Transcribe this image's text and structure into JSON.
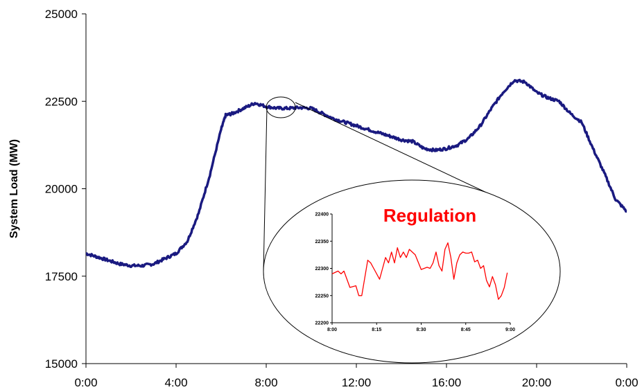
{
  "chart_data": [
    {
      "type": "line",
      "title": "",
      "xlabel": "",
      "ylabel": "System Load (MW)",
      "xlim": [
        0,
        24
      ],
      "ylim": [
        15000,
        25000
      ],
      "x_ticks": [
        "0:00",
        "4:00",
        "8:00",
        "12:00",
        "16:00",
        "20:00",
        "0:00"
      ],
      "y_ticks": [
        "15000",
        "17500",
        "20000",
        "22500",
        "25000"
      ],
      "series_color": "#1a1a80",
      "x": [
        0,
        0.5,
        1,
        1.5,
        2,
        2.5,
        3,
        3.5,
        4,
        4.5,
        5,
        5.5,
        6,
        6.2,
        6.5,
        7,
        7.5,
        8,
        8.5,
        9,
        9.5,
        10,
        10.5,
        11,
        11.5,
        12,
        12.5,
        13,
        13.5,
        14,
        14.5,
        15,
        15.5,
        16,
        16.5,
        17,
        17.5,
        18,
        18.5,
        19,
        19.5,
        20,
        20.5,
        21,
        21.5,
        22,
        22.5,
        23,
        23.5,
        24
      ],
      "values": [
        18150,
        18050,
        17950,
        17850,
        17800,
        17800,
        17850,
        18000,
        18150,
        18500,
        19300,
        20400,
        21700,
        22100,
        22150,
        22300,
        22450,
        22350,
        22300,
        22300,
        22320,
        22300,
        22150,
        22000,
        21900,
        21800,
        21700,
        21600,
        21500,
        21400,
        21350,
        21150,
        21100,
        21150,
        21250,
        21450,
        21800,
        22300,
        22750,
        23100,
        23050,
        22750,
        22600,
        22500,
        22150,
        21900,
        21150,
        20450,
        19700,
        19350
      ]
    },
    {
      "type": "line",
      "title": "Regulation",
      "xlabel": "",
      "ylabel": "",
      "xlim": [
        0,
        60
      ],
      "ylim": [
        22200,
        22400
      ],
      "x_ticks": [
        "8:00",
        "8:15",
        "8:30",
        "8:45",
        "9:00"
      ],
      "y_ticks": [
        "22200",
        "22250",
        "22300",
        "22350",
        "22400"
      ],
      "series_color": "#ff0000",
      "x": [
        0,
        2,
        3,
        4,
        6,
        8,
        9,
        10,
        12,
        13,
        14,
        16,
        17,
        18,
        19,
        20,
        21,
        22,
        23,
        24,
        25,
        26,
        28,
        30,
        31,
        32,
        33,
        34,
        35,
        36,
        37,
        38,
        39,
        40,
        41,
        42,
        43,
        44,
        45,
        46,
        47,
        48,
        49,
        50,
        51,
        52,
        53,
        54,
        55,
        56,
        57,
        58,
        59
      ],
      "values": [
        22290,
        22295,
        22290,
        22295,
        22265,
        22268,
        22250,
        22250,
        22315,
        22310,
        22300,
        22280,
        22300,
        22320,
        22310,
        22330,
        22310,
        22338,
        22320,
        22330,
        22320,
        22335,
        22325,
        22298,
        22300,
        22302,
        22300,
        22310,
        22330,
        22305,
        22295,
        22335,
        22347,
        22320,
        22280,
        22310,
        22325,
        22330,
        22328,
        22328,
        22330,
        22312,
        22315,
        22300,
        22305,
        22278,
        22266,
        22285,
        22270,
        22243,
        22250,
        22265,
        22292
      ]
    }
  ]
}
